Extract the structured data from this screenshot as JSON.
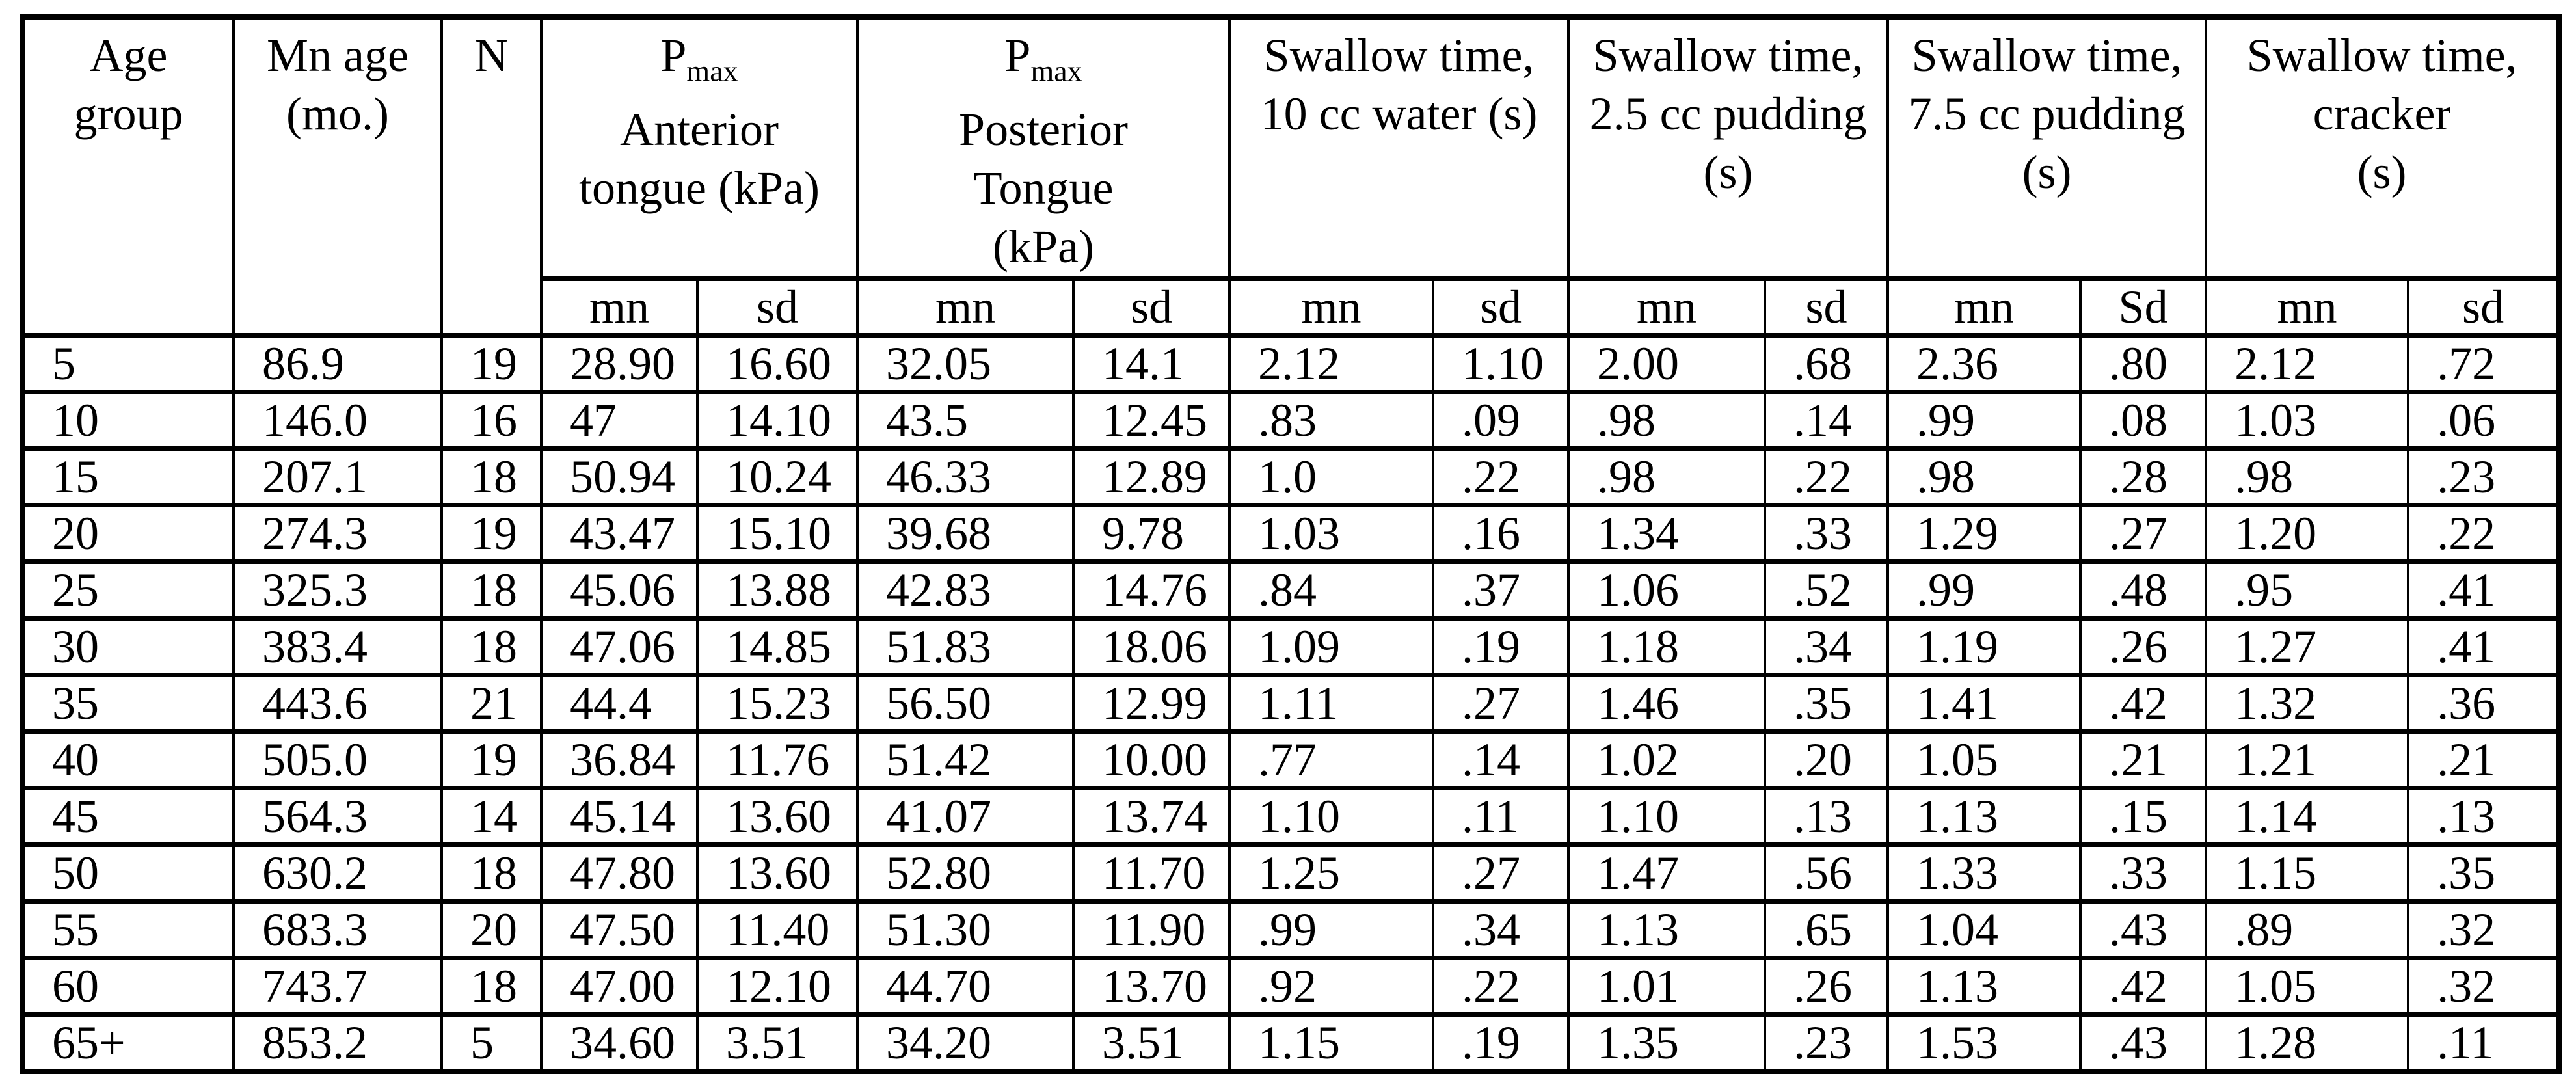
{
  "table": {
    "columns_simple": [
      {
        "id": "age_group",
        "lines": [
          "Age",
          "group"
        ]
      },
      {
        "id": "mn_age",
        "lines": [
          "Mn age",
          "(mo.)"
        ]
      },
      {
        "id": "n",
        "lines": [
          "N"
        ]
      }
    ],
    "column_groups": [
      {
        "id": "pmax_anterior",
        "prefix": "P",
        "subscript": "max",
        "lines": [
          "Anterior",
          "tongue (kPa)"
        ],
        "sub_headers": [
          "mn",
          "sd"
        ]
      },
      {
        "id": "pmax_posterior",
        "prefix": "P",
        "subscript": "max",
        "lines": [
          "Posterior",
          "Tongue",
          "(kPa)"
        ],
        "sub_headers": [
          "mn",
          "sd"
        ]
      },
      {
        "id": "swallow_water_10cc",
        "prefix": "",
        "subscript": "",
        "lines": [
          "Swallow time,",
          "10 cc water (s)"
        ],
        "sub_headers": [
          "mn",
          "sd"
        ]
      },
      {
        "id": "swallow_pudding_2_5",
        "prefix": "",
        "subscript": "",
        "lines": [
          "Swallow time,",
          "2.5 cc pudding",
          "(s)"
        ],
        "sub_headers": [
          "mn",
          "sd"
        ]
      },
      {
        "id": "swallow_pudding_7_5",
        "prefix": "",
        "subscript": "",
        "lines": [
          "Swallow time,",
          "7.5 cc pudding",
          "(s)"
        ],
        "sub_headers": [
          "mn",
          "Sd"
        ]
      },
      {
        "id": "swallow_cracker",
        "prefix": "",
        "subscript": "",
        "lines": [
          "Swallow time,",
          "cracker",
          "(s)"
        ],
        "sub_headers": [
          "mn",
          "sd"
        ]
      }
    ],
    "col_keys": [
      "age_group",
      "mn_age",
      "n",
      "ant_mn",
      "ant_sd",
      "post_mn",
      "post_sd",
      "water_mn",
      "water_sd",
      "pud25_mn",
      "pud25_sd",
      "pud75_mn",
      "pud75_sd",
      "cracker_mn",
      "cracker_sd"
    ],
    "rows": [
      [
        "5",
        "86.9",
        "19",
        "28.90",
        "16.60",
        "32.05",
        "14.1",
        "2.12",
        "1.10",
        "2.00",
        ".68",
        "2.36",
        ".80",
        "2.12",
        ".72"
      ],
      [
        "10",
        "146.0",
        "16",
        "47",
        "14.10",
        "43.5",
        "12.45",
        ".83",
        ".09",
        ".98",
        ".14",
        ".99",
        ".08",
        "1.03",
        ".06"
      ],
      [
        "15",
        "207.1",
        "18",
        "50.94",
        "10.24",
        "46.33",
        "12.89",
        "1.0",
        ".22",
        ".98",
        ".22",
        ".98",
        ".28",
        ".98",
        ".23"
      ],
      [
        "20",
        "274.3",
        "19",
        "43.47",
        "15.10",
        "39.68",
        "9.78",
        "1.03",
        ".16",
        "1.34",
        ".33",
        "1.29",
        ".27",
        "1.20",
        ".22"
      ],
      [
        "25",
        "325.3",
        "18",
        "45.06",
        "13.88",
        "42.83",
        "14.76",
        ".84",
        ".37",
        "1.06",
        ".52",
        ".99",
        ".48",
        ".95",
        ".41"
      ],
      [
        "30",
        "383.4",
        "18",
        "47.06",
        "14.85",
        "51.83",
        "18.06",
        "1.09",
        ".19",
        "1.18",
        ".34",
        "1.19",
        ".26",
        "1.27",
        ".41"
      ],
      [
        "35",
        "443.6",
        "21",
        "44.4",
        "15.23",
        "56.50",
        "12.99",
        "1.11",
        ".27",
        "1.46",
        ".35",
        "1.41",
        ".42",
        "1.32",
        ".36"
      ],
      [
        "40",
        "505.0",
        "19",
        "36.84",
        "11.76",
        "51.42",
        "10.00",
        ".77",
        ".14",
        "1.02",
        ".20",
        "1.05",
        ".21",
        "1.21",
        ".21"
      ],
      [
        "45",
        "564.3",
        "14",
        "45.14",
        "13.60",
        "41.07",
        "13.74",
        "1.10",
        ".11",
        "1.10",
        ".13",
        "1.13",
        ".15",
        "1.14",
        ".13"
      ],
      [
        "50",
        "630.2",
        "18",
        "47.80",
        "13.60",
        "52.80",
        "11.70",
        "1.25",
        ".27",
        "1.47",
        ".56",
        "1.33",
        ".33",
        "1.15",
        ".35"
      ],
      [
        "55",
        "683.3",
        "20",
        "47.50",
        "11.40",
        "51.30",
        "11.90",
        ".99",
        ".34",
        "1.13",
        ".65",
        "1.04",
        ".43",
        ".89",
        ".32"
      ],
      [
        "60",
        "743.7",
        "18",
        "47.00",
        "12.10",
        "44.70",
        "13.70",
        ".92",
        ".22",
        "1.01",
        ".26",
        "1.13",
        ".42",
        "1.05",
        ".32"
      ],
      [
        "65+",
        "853.2",
        "5",
        "34.60",
        "3.51",
        "34.20",
        "3.51",
        "1.15",
        ".19",
        "1.35",
        ".23",
        "1.53",
        ".43",
        "1.28",
        ".11"
      ]
    ]
  }
}
